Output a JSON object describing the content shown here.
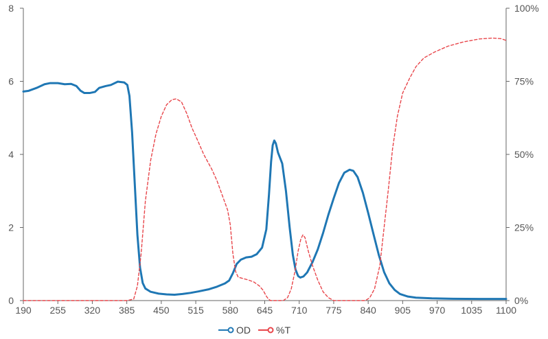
{
  "chart_data": {
    "type": "line",
    "title": "",
    "xlabel": "",
    "ylabel": "",
    "y2label": "",
    "xlim": [
      190,
      1100
    ],
    "x_ticks": [
      190,
      255,
      320,
      385,
      450,
      515,
      580,
      645,
      710,
      775,
      840,
      905,
      970,
      1035,
      1100
    ],
    "ylim": [
      0,
      8
    ],
    "y_ticks": [
      0,
      2,
      4,
      6,
      8
    ],
    "y2lim": [
      0,
      100
    ],
    "y2_ticks": [
      0,
      25,
      50,
      75,
      100
    ],
    "y2_tick_labels": [
      "0%",
      "25%",
      "50%",
      "75%",
      "100%"
    ],
    "grid": false,
    "legend_position": "bottom-center",
    "series": [
      {
        "name": "OD",
        "axis": "left",
        "color": "#1f77b4",
        "line_style": "solid",
        "points": [
          [
            190,
            5.72
          ],
          [
            200,
            5.74
          ],
          [
            215,
            5.82
          ],
          [
            230,
            5.92
          ],
          [
            240,
            5.95
          ],
          [
            255,
            5.95
          ],
          [
            268,
            5.92
          ],
          [
            280,
            5.93
          ],
          [
            290,
            5.87
          ],
          [
            298,
            5.74
          ],
          [
            305,
            5.68
          ],
          [
            315,
            5.68
          ],
          [
            325,
            5.71
          ],
          [
            333,
            5.82
          ],
          [
            345,
            5.87
          ],
          [
            355,
            5.9
          ],
          [
            368,
            5.99
          ],
          [
            380,
            5.97
          ],
          [
            386,
            5.9
          ],
          [
            390,
            5.6
          ],
          [
            395,
            4.6
          ],
          [
            400,
            3.2
          ],
          [
            405,
            1.8
          ],
          [
            410,
            0.9
          ],
          [
            415,
            0.48
          ],
          [
            420,
            0.33
          ],
          [
            430,
            0.24
          ],
          [
            445,
            0.19
          ],
          [
            460,
            0.17
          ],
          [
            475,
            0.16
          ],
          [
            490,
            0.18
          ],
          [
            505,
            0.21
          ],
          [
            520,
            0.25
          ],
          [
            540,
            0.31
          ],
          [
            555,
            0.38
          ],
          [
            570,
            0.47
          ],
          [
            578,
            0.55
          ],
          [
            585,
            0.75
          ],
          [
            592,
            1.0
          ],
          [
            600,
            1.12
          ],
          [
            610,
            1.18
          ],
          [
            620,
            1.2
          ],
          [
            630,
            1.27
          ],
          [
            640,
            1.45
          ],
          [
            648,
            1.95
          ],
          [
            653,
            2.9
          ],
          [
            657,
            3.8
          ],
          [
            660,
            4.25
          ],
          [
            663,
            4.38
          ],
          [
            666,
            4.3
          ],
          [
            670,
            4.05
          ],
          [
            678,
            3.75
          ],
          [
            685,
            3.0
          ],
          [
            692,
            2.0
          ],
          [
            698,
            1.25
          ],
          [
            703,
            0.85
          ],
          [
            708,
            0.67
          ],
          [
            712,
            0.63
          ],
          [
            718,
            0.66
          ],
          [
            725,
            0.77
          ],
          [
            735,
            1.05
          ],
          [
            745,
            1.4
          ],
          [
            755,
            1.85
          ],
          [
            765,
            2.35
          ],
          [
            775,
            2.8
          ],
          [
            785,
            3.22
          ],
          [
            795,
            3.5
          ],
          [
            805,
            3.58
          ],
          [
            812,
            3.55
          ],
          [
            820,
            3.38
          ],
          [
            830,
            2.95
          ],
          [
            840,
            2.4
          ],
          [
            850,
            1.82
          ],
          [
            860,
            1.25
          ],
          [
            870,
            0.78
          ],
          [
            880,
            0.47
          ],
          [
            890,
            0.29
          ],
          [
            900,
            0.18
          ],
          [
            915,
            0.11
          ],
          [
            930,
            0.08
          ],
          [
            960,
            0.06
          ],
          [
            1000,
            0.05
          ],
          [
            1050,
            0.045
          ],
          [
            1100,
            0.045
          ]
        ]
      },
      {
        "name": "%T",
        "axis": "right",
        "color": "#e8454a",
        "line_style": "dashed",
        "points": [
          [
            190,
            0
          ],
          [
            250,
            0
          ],
          [
            320,
            0
          ],
          [
            385,
            0
          ],
          [
            398,
            0.5
          ],
          [
            405,
            5
          ],
          [
            412,
            16
          ],
          [
            420,
            34
          ],
          [
            430,
            48
          ],
          [
            440,
            57
          ],
          [
            450,
            63
          ],
          [
            460,
            67
          ],
          [
            470,
            68.7
          ],
          [
            478,
            69
          ],
          [
            488,
            68
          ],
          [
            498,
            64
          ],
          [
            508,
            59
          ],
          [
            518,
            55
          ],
          [
            530,
            50
          ],
          [
            545,
            45
          ],
          [
            555,
            41
          ],
          [
            565,
            36
          ],
          [
            575,
            31
          ],
          [
            580,
            26
          ],
          [
            585,
            16
          ],
          [
            590,
            10
          ],
          [
            595,
            8
          ],
          [
            605,
            7.5
          ],
          [
            615,
            7
          ],
          [
            625,
            6.3
          ],
          [
            635,
            5
          ],
          [
            642,
            3.5
          ],
          [
            648,
            1.5
          ],
          [
            652,
            0.5
          ],
          [
            656,
            0
          ],
          [
            672,
            0
          ],
          [
            680,
            0
          ],
          [
            688,
            1
          ],
          [
            695,
            4
          ],
          [
            702,
            10
          ],
          [
            708,
            17
          ],
          [
            713,
            21
          ],
          [
            717,
            22.5
          ],
          [
            721,
            21.5
          ],
          [
            727,
            17
          ],
          [
            735,
            12
          ],
          [
            745,
            7
          ],
          [
            755,
            3
          ],
          [
            765,
            1
          ],
          [
            775,
            0
          ],
          [
            820,
            0
          ],
          [
            835,
            0
          ],
          [
            843,
            1
          ],
          [
            852,
            4
          ],
          [
            862,
            12
          ],
          [
            870,
            25
          ],
          [
            878,
            38
          ],
          [
            886,
            52
          ],
          [
            895,
            63
          ],
          [
            905,
            71
          ],
          [
            918,
            76
          ],
          [
            930,
            80
          ],
          [
            945,
            83
          ],
          [
            965,
            85
          ],
          [
            990,
            87
          ],
          [
            1020,
            88.5
          ],
          [
            1050,
            89.5
          ],
          [
            1075,
            89.8
          ],
          [
            1090,
            89.6
          ],
          [
            1100,
            89.0
          ]
        ]
      }
    ]
  },
  "legend": {
    "items": [
      {
        "label": "OD",
        "color": "#1f77b4"
      },
      {
        "label": "%T",
        "color": "#e8454a"
      }
    ]
  },
  "style": {
    "axis_color": "#666666",
    "tick_text_color": "#555555"
  }
}
